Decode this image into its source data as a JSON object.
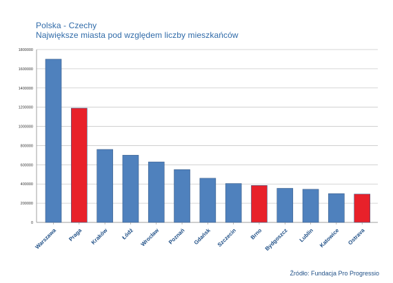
{
  "chart_data": {
    "type": "bar",
    "title": "Polska - Czechy",
    "subtitle": "Największe miasta pod względem liczby mieszkańców",
    "categories": [
      "Warszawa",
      "Praga",
      "Kraków",
      "Łódź",
      "Wrocław",
      "Poznań",
      "Gdańsk",
      "Szczecin",
      "Brno",
      "Bydgoszcz",
      "Lublin",
      "Katowice",
      "Ostrava"
    ],
    "values": [
      1700000,
      1190000,
      760000,
      700000,
      630000,
      550000,
      460000,
      405000,
      385000,
      355000,
      345000,
      300000,
      295000
    ],
    "countries": [
      "PL",
      "CZ",
      "PL",
      "PL",
      "PL",
      "PL",
      "PL",
      "PL",
      "CZ",
      "PL",
      "PL",
      "PL",
      "CZ"
    ],
    "colors": {
      "PL": "#4f81bd",
      "CZ": "#e8212a"
    },
    "ylim": [
      0,
      1800000
    ],
    "yticks": [
      0,
      200000,
      400000,
      600000,
      800000,
      1000000,
      1200000,
      1400000,
      1600000,
      1800000
    ],
    "grid": true,
    "source": "Źródło: Fundacja Pro Progressio"
  }
}
